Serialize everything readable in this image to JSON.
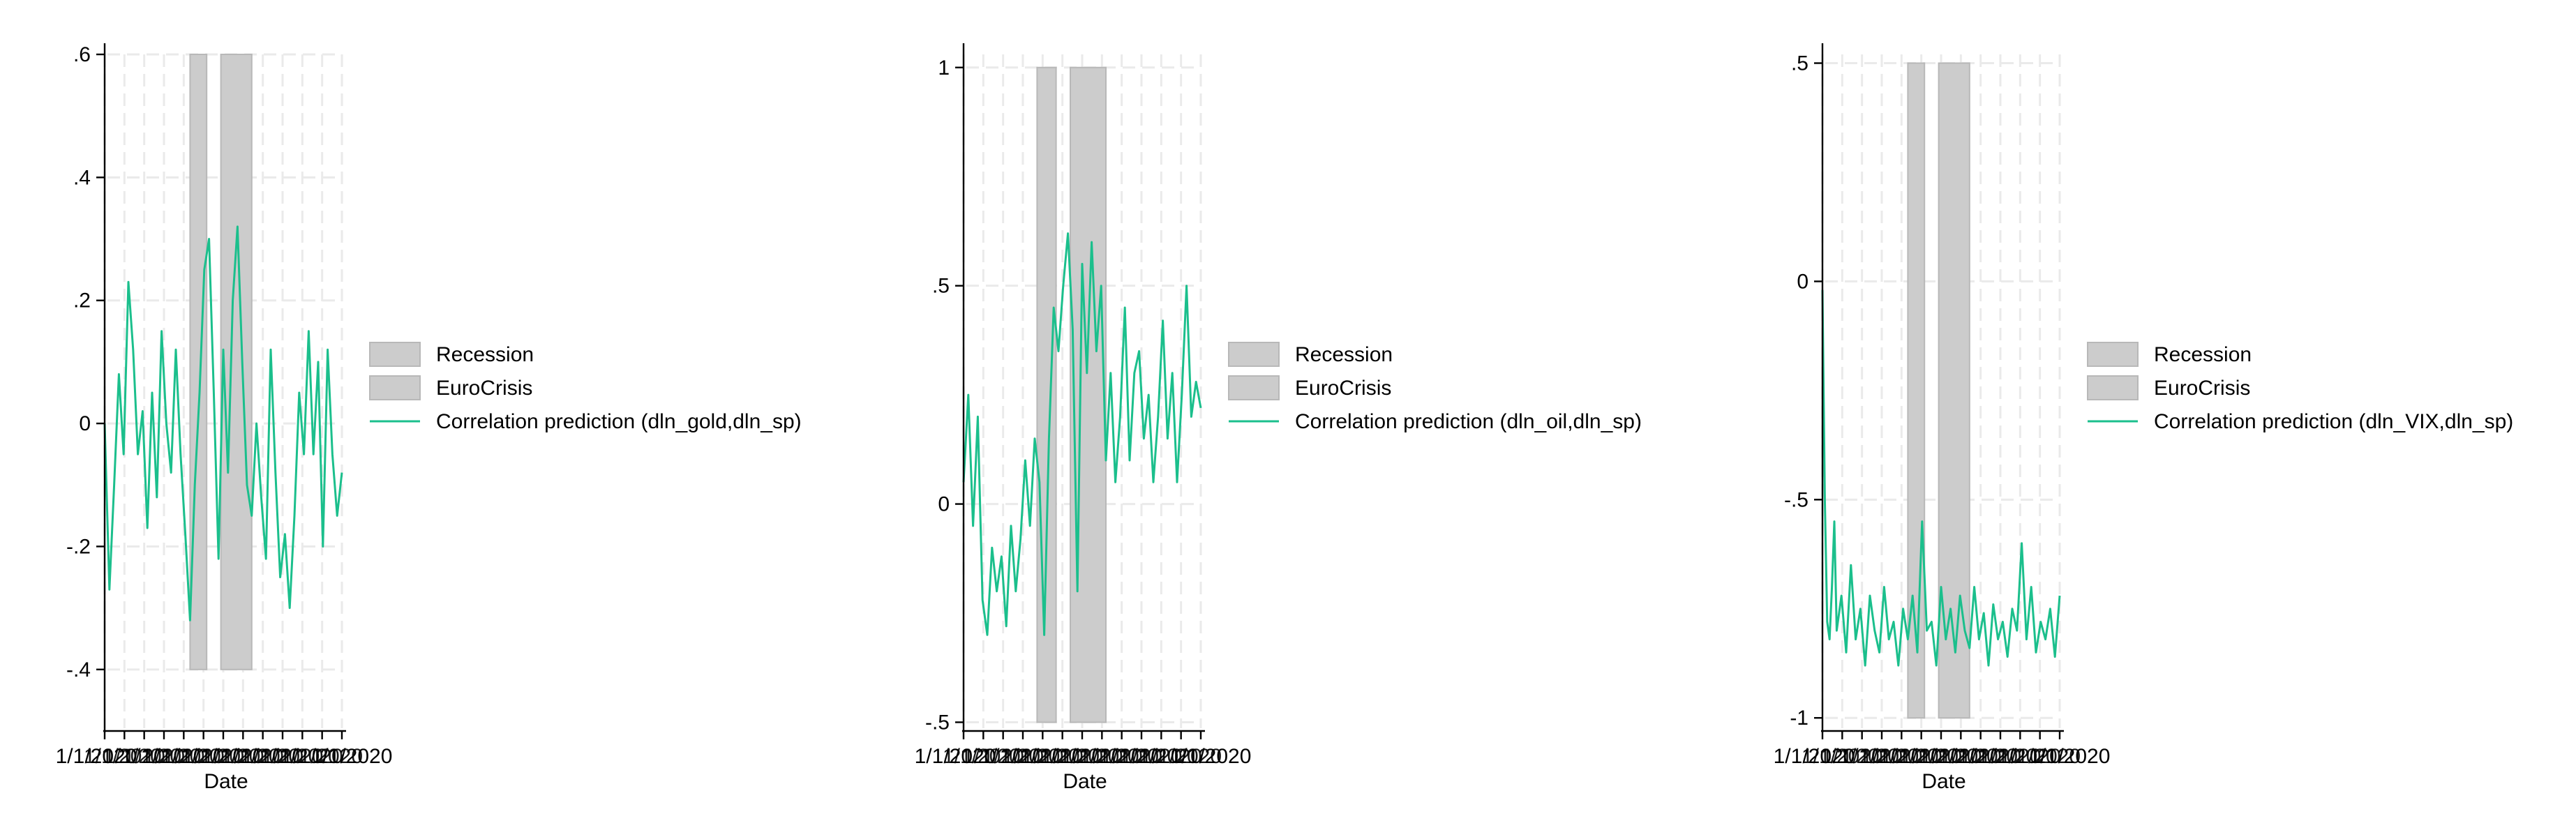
{
  "colors": {
    "recession": "#cccccc",
    "eurocrisis": "#cccccc",
    "line": "#1bbf8c",
    "band_edge": "#b8b8b8"
  },
  "chart_data": [
    {
      "type": "line",
      "xlabel": "Date",
      "ylabel": "",
      "x_first_label": "1/1/2020",
      "x_last_label": "1/1/2020",
      "x_ticks_count": 13,
      "grid": true,
      "legend_position": "right",
      "legend": [
        "Recession",
        "EuroCrisis",
        "Correlation prediction (dln_gold,dln_sp)"
      ],
      "ylim": [
        -0.5,
        0.6
      ],
      "yticks": [
        -0.4,
        -0.2,
        0,
        0.2,
        0.4,
        0.6
      ],
      "ytick_labels": [
        "-.4",
        "-.2",
        "0",
        ".2",
        ".4",
        ".6"
      ],
      "x_range": [
        0,
        100
      ],
      "recession": [
        36,
        43
      ],
      "eurocrisis": [
        49,
        62
      ],
      "series": [
        {
          "x": [
            0,
            2,
            4,
            6,
            8,
            10,
            12,
            14,
            16,
            18,
            20,
            22,
            24,
            26,
            28,
            30,
            32,
            34,
            36,
            38,
            40,
            42,
            44,
            46,
            48,
            50,
            52,
            54,
            56,
            58,
            60,
            62,
            64,
            66,
            68,
            70,
            72,
            74,
            76,
            78,
            80,
            82,
            84,
            86,
            88,
            90,
            92,
            94,
            96,
            98,
            100
          ],
          "values": [
            0.0,
            -0.27,
            -0.1,
            0.08,
            -0.05,
            0.23,
            0.12,
            -0.05,
            0.02,
            -0.17,
            0.05,
            -0.12,
            0.15,
            0.0,
            -0.08,
            0.12,
            -0.05,
            -0.18,
            -0.32,
            -0.1,
            0.05,
            0.25,
            0.3,
            0.05,
            -0.22,
            0.12,
            -0.08,
            0.2,
            0.32,
            0.1,
            -0.1,
            -0.15,
            0.0,
            -0.12,
            -0.22,
            0.12,
            -0.08,
            -0.25,
            -0.18,
            -0.3,
            -0.15,
            0.05,
            -0.05,
            0.15,
            -0.05,
            0.1,
            -0.2,
            0.12,
            -0.05,
            -0.15,
            -0.08
          ]
        }
      ]
    },
    {
      "type": "line",
      "xlabel": "Date",
      "ylabel": "",
      "x_first_label": "1/1/2020",
      "x_last_label": "1/1/2020",
      "x_ticks_count": 13,
      "grid": true,
      "legend_position": "right",
      "legend": [
        "Recession",
        "EuroCrisis",
        "Correlation prediction (dln_oil,dln_sp)"
      ],
      "ylim": [
        -0.52,
        1.03
      ],
      "yticks": [
        -0.5,
        0,
        0.5,
        1
      ],
      "ytick_labels": [
        "-.5",
        "0",
        ".5",
        "1"
      ],
      "x_range": [
        0,
        100
      ],
      "recession": [
        31,
        39
      ],
      "eurocrisis": [
        45,
        60
      ],
      "series": [
        {
          "x": [
            0,
            2,
            4,
            6,
            8,
            10,
            12,
            14,
            16,
            18,
            20,
            22,
            24,
            26,
            28,
            30,
            32,
            34,
            36,
            38,
            40,
            42,
            44,
            46,
            48,
            50,
            52,
            54,
            56,
            58,
            60,
            62,
            64,
            66,
            68,
            70,
            72,
            74,
            76,
            78,
            80,
            82,
            84,
            86,
            88,
            90,
            92,
            94,
            96,
            98,
            100
          ],
          "values": [
            0.05,
            0.25,
            -0.05,
            0.2,
            -0.22,
            -0.3,
            -0.1,
            -0.2,
            -0.12,
            -0.28,
            -0.05,
            -0.2,
            -0.08,
            0.1,
            -0.05,
            0.15,
            0.05,
            -0.3,
            0.15,
            0.45,
            0.35,
            0.5,
            0.62,
            0.4,
            -0.2,
            0.55,
            0.3,
            0.6,
            0.35,
            0.5,
            0.1,
            0.3,
            0.05,
            0.2,
            0.45,
            0.1,
            0.3,
            0.35,
            0.15,
            0.25,
            0.05,
            0.2,
            0.42,
            0.15,
            0.3,
            0.05,
            0.25,
            0.5,
            0.2,
            0.28,
            0.22
          ]
        }
      ]
    },
    {
      "type": "line",
      "xlabel": "Date",
      "ylabel": "",
      "x_first_label": "1/1/2020",
      "x_last_label": "1/1/2020",
      "x_ticks_count": 13,
      "grid": true,
      "legend_position": "right",
      "legend": [
        "Recession",
        "EuroCrisis",
        "Correlation prediction (dln_VIX,dln_sp)"
      ],
      "ylim": [
        -1.03,
        0.52
      ],
      "yticks": [
        -1,
        -0.5,
        0,
        0.5
      ],
      "ytick_labels": [
        "-1",
        "-.5",
        "0",
        ".5"
      ],
      "x_range": [
        0,
        100
      ],
      "recession": [
        36,
        43
      ],
      "eurocrisis": [
        49,
        62
      ],
      "series": [
        {
          "x": [
            0,
            1,
            2,
            3,
            4,
            5,
            6,
            8,
            10,
            12,
            14,
            16,
            18,
            20,
            22,
            24,
            26,
            28,
            30,
            32,
            34,
            36,
            38,
            40,
            42,
            44,
            46,
            48,
            50,
            52,
            54,
            56,
            58,
            60,
            62,
            64,
            66,
            68,
            70,
            72,
            74,
            76,
            78,
            80,
            82,
            84,
            86,
            88,
            90,
            92,
            94,
            96,
            98,
            100
          ],
          "values": [
            -0.02,
            -0.5,
            -0.78,
            -0.82,
            -0.7,
            -0.55,
            -0.8,
            -0.72,
            -0.85,
            -0.65,
            -0.82,
            -0.75,
            -0.88,
            -0.72,
            -0.8,
            -0.85,
            -0.7,
            -0.82,
            -0.78,
            -0.88,
            -0.75,
            -0.82,
            -0.72,
            -0.85,
            -0.55,
            -0.8,
            -0.78,
            -0.88,
            -0.7,
            -0.82,
            -0.75,
            -0.85,
            -0.72,
            -0.8,
            -0.84,
            -0.7,
            -0.82,
            -0.76,
            -0.88,
            -0.74,
            -0.82,
            -0.78,
            -0.86,
            -0.75,
            -0.8,
            -0.6,
            -0.82,
            -0.7,
            -0.85,
            -0.78,
            -0.82,
            -0.75,
            -0.86,
            -0.72
          ]
        }
      ]
    }
  ]
}
